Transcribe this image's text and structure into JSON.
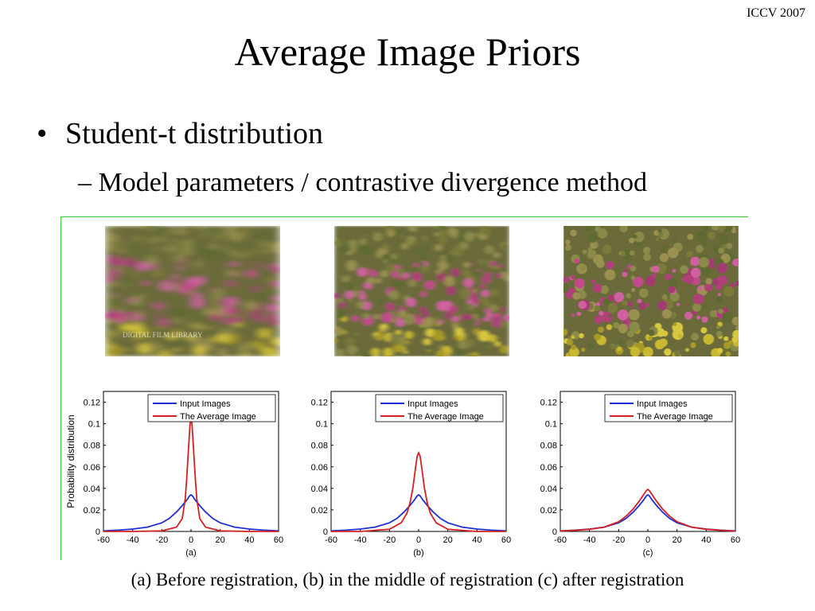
{
  "slide": {
    "venue": "ICCV 2007",
    "title": "Average Image Priors",
    "bullet": "Student-t distribution",
    "sub_bullet": "Model parameters / contrastive divergence  method",
    "caption": "(a) Before registration, (b) in the middle of registration (c) after registration"
  },
  "photos": [
    {
      "label": "(a)",
      "blur": 6,
      "watermark": "DIGITAL FILM LIBRARY"
    },
    {
      "label": "(b)",
      "blur": 3,
      "watermark": ""
    },
    {
      "label": "(c)",
      "blur": 0.6,
      "watermark": ""
    }
  ],
  "chart_data": [
    {
      "type": "line",
      "panel_label": "(a)",
      "ylabel": "Probability distribution",
      "xlim": [
        -60,
        60
      ],
      "ylim": [
        0,
        0.13
      ],
      "xticks": [
        "-60",
        "-40",
        "-20",
        "0",
        "20",
        "40",
        "60"
      ],
      "yticks": [
        "0",
        "0.02",
        "0.04",
        "0.06",
        "0.08",
        "0.1",
        "0.12"
      ],
      "legend_position": "top-right",
      "series": [
        {
          "name": "Input Images",
          "color": "#1f2fd6",
          "x": [
            -60,
            -50,
            -40,
            -30,
            -20,
            -15,
            -10,
            -6,
            -3,
            -1,
            0,
            1,
            3,
            6,
            10,
            15,
            20,
            30,
            40,
            50,
            60
          ],
          "y": [
            0.0005,
            0.0012,
            0.0022,
            0.004,
            0.008,
            0.012,
            0.018,
            0.024,
            0.029,
            0.033,
            0.034,
            0.033,
            0.029,
            0.024,
            0.018,
            0.012,
            0.008,
            0.004,
            0.0022,
            0.0012,
            0.0005
          ]
        },
        {
          "name": "The Average Image",
          "color": "#d42020",
          "x": [
            -60,
            -40,
            -20,
            -10,
            -6,
            -4,
            -3,
            -2,
            -1,
            -0.5,
            0,
            0.5,
            1,
            2,
            3,
            4,
            6,
            10,
            20,
            40,
            60
          ],
          "y": [
            0,
            0,
            0.0005,
            0.004,
            0.012,
            0.03,
            0.048,
            0.07,
            0.093,
            0.102,
            0.105,
            0.102,
            0.093,
            0.07,
            0.048,
            0.03,
            0.012,
            0.004,
            0.0005,
            0,
            0
          ]
        }
      ]
    },
    {
      "type": "line",
      "panel_label": "(b)",
      "ylabel": "",
      "xlim": [
        -60,
        60
      ],
      "ylim": [
        0,
        0.13
      ],
      "xticks": [
        "-60",
        "-40",
        "-20",
        "0",
        "20",
        "40",
        "60"
      ],
      "yticks": [
        "0",
        "0.02",
        "0.04",
        "0.06",
        "0.08",
        "0.1",
        "0.12"
      ],
      "legend_position": "top-right",
      "series": [
        {
          "name": "Input Images",
          "color": "#1f2fd6",
          "x": [
            -60,
            -50,
            -40,
            -30,
            -20,
            -15,
            -10,
            -6,
            -3,
            -1,
            0,
            1,
            3,
            6,
            10,
            15,
            20,
            30,
            40,
            50,
            60
          ],
          "y": [
            0.0005,
            0.0012,
            0.0022,
            0.004,
            0.008,
            0.012,
            0.018,
            0.024,
            0.029,
            0.033,
            0.034,
            0.033,
            0.029,
            0.024,
            0.018,
            0.012,
            0.008,
            0.004,
            0.0022,
            0.0012,
            0.0005
          ]
        },
        {
          "name": "The Average Image",
          "color": "#d42020",
          "x": [
            -60,
            -40,
            -20,
            -12,
            -8,
            -6,
            -4,
            -3,
            -2,
            -1,
            0,
            1,
            2,
            3,
            4,
            6,
            8,
            12,
            20,
            40,
            60
          ],
          "y": [
            0,
            0,
            0.002,
            0.008,
            0.017,
            0.026,
            0.04,
            0.05,
            0.06,
            0.07,
            0.073,
            0.07,
            0.06,
            0.05,
            0.04,
            0.026,
            0.017,
            0.008,
            0.002,
            0,
            0
          ]
        }
      ]
    },
    {
      "type": "line",
      "panel_label": "(c)",
      "ylabel": "",
      "xlim": [
        -60,
        60
      ],
      "ylim": [
        0,
        0.13
      ],
      "xticks": [
        "-60",
        "-40",
        "-20",
        "0",
        "20",
        "40",
        "60"
      ],
      "yticks": [
        "0",
        "0.02",
        "0.04",
        "0.06",
        "0.08",
        "0.1",
        "0.12"
      ],
      "legend_position": "top-right",
      "series": [
        {
          "name": "Input Images",
          "color": "#1f2fd6",
          "x": [
            -60,
            -50,
            -40,
            -30,
            -20,
            -15,
            -10,
            -6,
            -3,
            -1,
            0,
            1,
            3,
            6,
            10,
            15,
            20,
            30,
            40,
            50,
            60
          ],
          "y": [
            0.0005,
            0.0012,
            0.0022,
            0.004,
            0.008,
            0.012,
            0.018,
            0.024,
            0.029,
            0.033,
            0.034,
            0.033,
            0.029,
            0.024,
            0.018,
            0.012,
            0.008,
            0.004,
            0.0022,
            0.0012,
            0.0005
          ]
        },
        {
          "name": "The Average Image",
          "color": "#d42020",
          "x": [
            -60,
            -50,
            -40,
            -30,
            -20,
            -15,
            -10,
            -6,
            -3,
            -1,
            0,
            1,
            3,
            6,
            10,
            15,
            20,
            30,
            40,
            50,
            60
          ],
          "y": [
            0.0004,
            0.001,
            0.002,
            0.004,
            0.009,
            0.014,
            0.021,
            0.028,
            0.034,
            0.038,
            0.039,
            0.038,
            0.034,
            0.028,
            0.021,
            0.014,
            0.009,
            0.004,
            0.002,
            0.001,
            0.0004
          ]
        }
      ]
    }
  ]
}
